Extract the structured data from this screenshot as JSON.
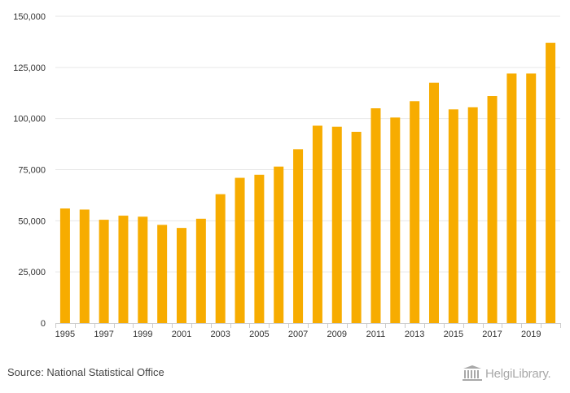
{
  "chart_data": {
    "type": "bar",
    "title": "",
    "xlabel": "",
    "ylabel": "",
    "ylim": [
      0,
      150000
    ],
    "grid": true,
    "bar_color": "#F7AC00",
    "grid_color": "#e6e6e6",
    "axis_color": "#cccccc",
    "y_ticks": [
      0,
      25000,
      50000,
      75000,
      100000,
      125000,
      150000
    ],
    "y_tick_labels": [
      "0",
      "25,000",
      "50,000",
      "75,000",
      "100,000",
      "125,000",
      "150,000"
    ],
    "x_tick_labels": [
      "1995",
      "1997",
      "1999",
      "2001",
      "2003",
      "2005",
      "2007",
      "2009",
      "2011",
      "2013",
      "2015",
      "2017",
      "2019"
    ],
    "categories": [
      "1995",
      "1996",
      "1997",
      "1998",
      "1999",
      "2000",
      "2001",
      "2002",
      "2003",
      "2004",
      "2005",
      "2006",
      "2007",
      "2008",
      "2009",
      "2010",
      "2011",
      "2012",
      "2013",
      "2014",
      "2015",
      "2016",
      "2017",
      "2018",
      "2019",
      "2020"
    ],
    "values": [
      56000,
      55500,
      50500,
      52500,
      52000,
      48000,
      46500,
      51000,
      63000,
      71000,
      72500,
      76500,
      85000,
      96500,
      96000,
      93500,
      105000,
      100500,
      108500,
      117500,
      104500,
      105500,
      111000,
      122000,
      122000,
      137000
    ]
  },
  "footer": {
    "source": "Source: National Statistical Office",
    "logo_text": "HelgiLibrary."
  }
}
